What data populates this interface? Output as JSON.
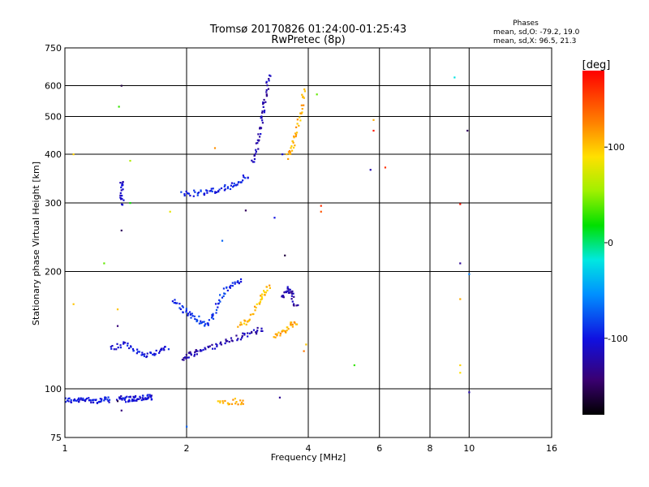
{
  "chart_data": {
    "type": "scatter",
    "title": "Tromsø 20170826 01:24:00-01:25:43",
    "subtitle": "RwPretec (8p)",
    "xlabel": "Frequency [MHz]",
    "ylabel": "Stationary phase Virtual Height [km]",
    "x_scale": "log",
    "y_scale": "log",
    "xlim": [
      1,
      16
    ],
    "ylim": [
      75,
      750
    ],
    "x_ticks": [
      "1",
      "2",
      "4",
      "6",
      "8",
      "10",
      "16"
    ],
    "y_ticks": [
      "75",
      "100",
      "200",
      "300",
      "400",
      "500",
      "600",
      "750"
    ],
    "grid": true,
    "phase_info": {
      "heading": "Phases",
      "line_o": "mean, sd,O: -79.2, 19.0",
      "line_x": "mean, sd,X:  96.5, 21.3"
    },
    "colorbar": {
      "label": "[deg]",
      "range": [
        -180,
        180
      ],
      "tick_labels": [
        "100",
        "0",
        "-100"
      ],
      "tick_values": [
        100,
        0,
        -100
      ]
    },
    "traces": [
      {
        "freq": [
          1.0,
          1.05,
          1.1,
          1.15,
          1.2,
          1.25,
          1.3
        ],
        "height": [
          94,
          93,
          93.5,
          94,
          93,
          93.5,
          94
        ],
        "phase": -100
      },
      {
        "freq": [
          1.35,
          1.4,
          1.45,
          1.5,
          1.55,
          1.6,
          1.65
        ],
        "height": [
          94.5,
          94,
          94,
          94.5,
          94.5,
          95,
          95
        ],
        "phase": -105
      },
      {
        "freq": [
          1.3,
          1.4,
          1.5,
          1.6,
          1.7,
          1.8
        ],
        "height": [
          127,
          130,
          125,
          122,
          125,
          127
        ],
        "phase": -100
      },
      {
        "freq": [
          1.85,
          1.95,
          2.05,
          2.15,
          2.25,
          2.35,
          2.45,
          2.6,
          2.75
        ],
        "height": [
          170,
          160,
          155,
          150,
          145,
          158,
          175,
          185,
          190
        ],
        "phase": -90
      },
      {
        "freq": [
          1.95,
          2.05,
          2.15,
          2.3,
          2.5,
          2.7,
          2.9,
          3.1
        ],
        "height": [
          120,
          122,
          125,
          128,
          132,
          136,
          140,
          142
        ],
        "phase": -118
      },
      {
        "freq": [
          2.7,
          2.85,
          3.0,
          3.1,
          3.2
        ],
        "height": [
          145,
          150,
          165,
          175,
          185
        ],
        "phase": 105
      },
      {
        "freq": [
          3.3,
          3.45,
          3.6,
          3.75
        ],
        "height": [
          137,
          140,
          145,
          148
        ],
        "phase": 110
      },
      {
        "freq": [
          3.45,
          3.55,
          3.65,
          3.75
        ],
        "height": [
          170,
          180,
          175,
          160
        ],
        "phase": -120
      },
      {
        "freq": [
          1.95,
          2.1,
          2.25,
          2.4,
          2.55,
          2.7,
          2.85
        ],
        "height": [
          315,
          318,
          320,
          325,
          330,
          340,
          355
        ],
        "phase": -95
      },
      {
        "freq": [
          2.9,
          3.0,
          3.05,
          3.1,
          3.15,
          3.2
        ],
        "height": [
          380,
          420,
          470,
          520,
          580,
          640
        ],
        "phase": -120
      },
      {
        "freq": [
          3.55,
          3.65,
          3.75,
          3.85,
          3.9
        ],
        "height": [
          395,
          420,
          460,
          520,
          600
        ],
        "phase": 110
      },
      {
        "freq": [
          1.38,
          1.38,
          1.39
        ],
        "height": [
          340,
          320,
          295
        ],
        "phase": -110
      },
      {
        "freq": [
          2.4,
          2.6,
          2.8
        ],
        "height": [
          92,
          93,
          92
        ],
        "phase": 110
      }
    ],
    "isolated_points": [
      {
        "freq": 1.38,
        "height": 600,
        "phase": -160
      },
      {
        "freq": 1.36,
        "height": 530,
        "phase": 30
      },
      {
        "freq": 1.05,
        "height": 400,
        "phase": 95
      },
      {
        "freq": 1.45,
        "height": 385,
        "phase": 60
      },
      {
        "freq": 1.45,
        "height": 300,
        "phase": 20
      },
      {
        "freq": 1.38,
        "height": 255,
        "phase": -150
      },
      {
        "freq": 1.25,
        "height": 210,
        "phase": 40
      },
      {
        "freq": 1.05,
        "height": 165,
        "phase": 100
      },
      {
        "freq": 1.35,
        "height": 160,
        "phase": 100
      },
      {
        "freq": 1.35,
        "height": 145,
        "phase": -140
      },
      {
        "freq": 1.38,
        "height": 88,
        "phase": -140
      },
      {
        "freq": 1.35,
        "height": 93,
        "phase": -160
      },
      {
        "freq": 2.0,
        "height": 80,
        "phase": -70
      },
      {
        "freq": 1.82,
        "height": 285,
        "phase": 80
      },
      {
        "freq": 2.35,
        "height": 415,
        "phase": 120
      },
      {
        "freq": 2.8,
        "height": 287,
        "phase": -150
      },
      {
        "freq": 3.3,
        "height": 275,
        "phase": -100
      },
      {
        "freq": 2.45,
        "height": 240,
        "phase": -70
      },
      {
        "freq": 3.5,
        "height": 220,
        "phase": -160
      },
      {
        "freq": 3.45,
        "height": 400,
        "phase": -110
      },
      {
        "freq": 3.4,
        "height": 95,
        "phase": -130
      },
      {
        "freq": 3.95,
        "height": 130,
        "phase": 100
      },
      {
        "freq": 4.2,
        "height": 570,
        "phase": 40
      },
      {
        "freq": 4.3,
        "height": 295,
        "phase": 160
      },
      {
        "freq": 4.3,
        "height": 285,
        "phase": 145
      },
      {
        "freq": 5.8,
        "height": 490,
        "phase": 110
      },
      {
        "freq": 5.8,
        "height": 460,
        "phase": 170
      },
      {
        "freq": 6.2,
        "height": 370,
        "phase": 160
      },
      {
        "freq": 5.7,
        "height": 365,
        "phase": -120
      },
      {
        "freq": 5.2,
        "height": 115,
        "phase": 30
      },
      {
        "freq": 3.9,
        "height": 125,
        "phase": 130
      },
      {
        "freq": 9.2,
        "height": 630,
        "phase": -20
      },
      {
        "freq": 9.5,
        "height": 298,
        "phase": 170
      },
      {
        "freq": 9.5,
        "height": 210,
        "phase": -130
      },
      {
        "freq": 9.9,
        "height": 460,
        "phase": -150
      },
      {
        "freq": 9.5,
        "height": 170,
        "phase": 110
      },
      {
        "freq": 9.5,
        "height": 115,
        "phase": 95
      },
      {
        "freq": 9.5,
        "height": 110,
        "phase": 90
      },
      {
        "freq": 10.0,
        "height": 197,
        "phase": -60
      },
      {
        "freq": 10.0,
        "height": 98,
        "phase": -120
      }
    ]
  }
}
